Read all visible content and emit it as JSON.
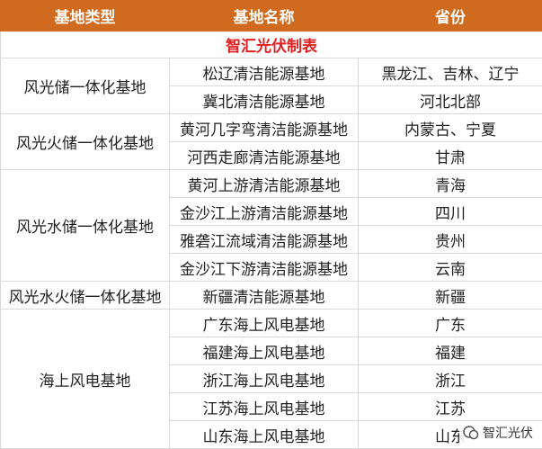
{
  "header": {
    "columns": [
      "基地类型",
      "基地名称",
      "省份"
    ]
  },
  "table": {
    "title": "智汇光伏制表",
    "groups": [
      {
        "type": "风光储一体化基地",
        "rows": [
          [
            "松辽清洁能源基地",
            "黑龙江、吉林、辽宁"
          ],
          [
            "冀北清洁能源基地",
            "河北北部"
          ]
        ]
      },
      {
        "type": "风光火储一体化基地",
        "rows": [
          [
            "黄河几字弯清洁能源基地",
            "内蒙古、宁夏"
          ],
          [
            "河西走廊清洁能源基地",
            "甘肃"
          ]
        ]
      },
      {
        "type": "风光水储一体化基地",
        "rows": [
          [
            "黄河上游清洁能源基地",
            "青海"
          ],
          [
            "金沙江上游清洁能源基地",
            "四川"
          ],
          [
            "雅砻江流域清洁能源基地",
            "贵州"
          ],
          [
            "金沙江下游清洁能源基地",
            "云南"
          ]
        ]
      },
      {
        "type": "风光水火储一体化基地",
        "rows": [
          [
            "新疆清洁能源基地",
            "新疆"
          ]
        ]
      },
      {
        "type": "海上风电基地",
        "rows": [
          [
            "广东海上风电基地",
            "广东"
          ],
          [
            "福建海上风电基地",
            "福建"
          ],
          [
            "浙江海上风电基地",
            "浙江"
          ],
          [
            "江苏海上风电基地",
            "江苏"
          ],
          [
            "山东海上风电基地",
            "山东"
          ]
        ]
      }
    ]
  },
  "watermark": "智汇光伏"
}
